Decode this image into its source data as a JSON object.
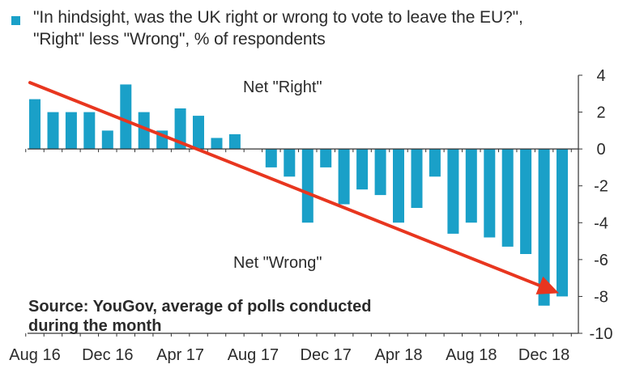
{
  "chart_data": {
    "type": "bar",
    "title_lines": [
      "\"In hindsight, was the UK right or wrong to vote to leave the EU?\",",
      "\"Right\" less \"Wrong\", % of respondents"
    ],
    "categories": [
      "Aug 16",
      "Sep 16",
      "Oct 16",
      "Nov 16",
      "Dec 16",
      "Jan 17",
      "Feb 17",
      "Mar 17",
      "Apr 17",
      "May 17",
      "Jun 17",
      "Jul 17",
      "Aug 17",
      "Sep 17",
      "Oct 17",
      "Nov 17",
      "Dec 17",
      "Jan 18",
      "Feb 18",
      "Mar 18",
      "Apr 18",
      "May 18",
      "Jun 18",
      "Jul 18",
      "Aug 18",
      "Sep 18",
      "Oct 18",
      "Nov 18",
      "Dec 18",
      "Jan 19"
    ],
    "values": [
      2.7,
      2.0,
      2.0,
      2.0,
      1.0,
      3.5,
      2.0,
      1.0,
      2.2,
      1.8,
      0.6,
      0.8,
      null,
      -1.0,
      -1.5,
      -4.0,
      -1.0,
      -3.0,
      -2.2,
      -2.5,
      -4.0,
      -3.2,
      -1.5,
      -4.6,
      -4.0,
      -4.8,
      -5.3,
      -5.7,
      -8.5,
      -8.0
    ],
    "x_tick_labels": [
      "Aug 16",
      "Dec 16",
      "Apr 17",
      "Aug 17",
      "Dec 17",
      "Apr 18",
      "Aug 18",
      "Dec 18"
    ],
    "y_tick_labels": [
      "4",
      "2",
      "0",
      "-2",
      "-4",
      "-6",
      "-8",
      "-10"
    ],
    "ylim": [
      -10,
      4
    ],
    "y_axis_side": "right",
    "grid": false,
    "bar_color": "#1aa0c8",
    "trend_arrow": {
      "color": "#e8361f",
      "from_value": 3.6,
      "to_value": -8.0
    },
    "annotations": {
      "net_right": "Net \"Right\"",
      "net_wrong": "Net \"Wrong\"",
      "source_lines": [
        "Source: YouGov, average of polls conducted",
        "during the month"
      ]
    }
  }
}
